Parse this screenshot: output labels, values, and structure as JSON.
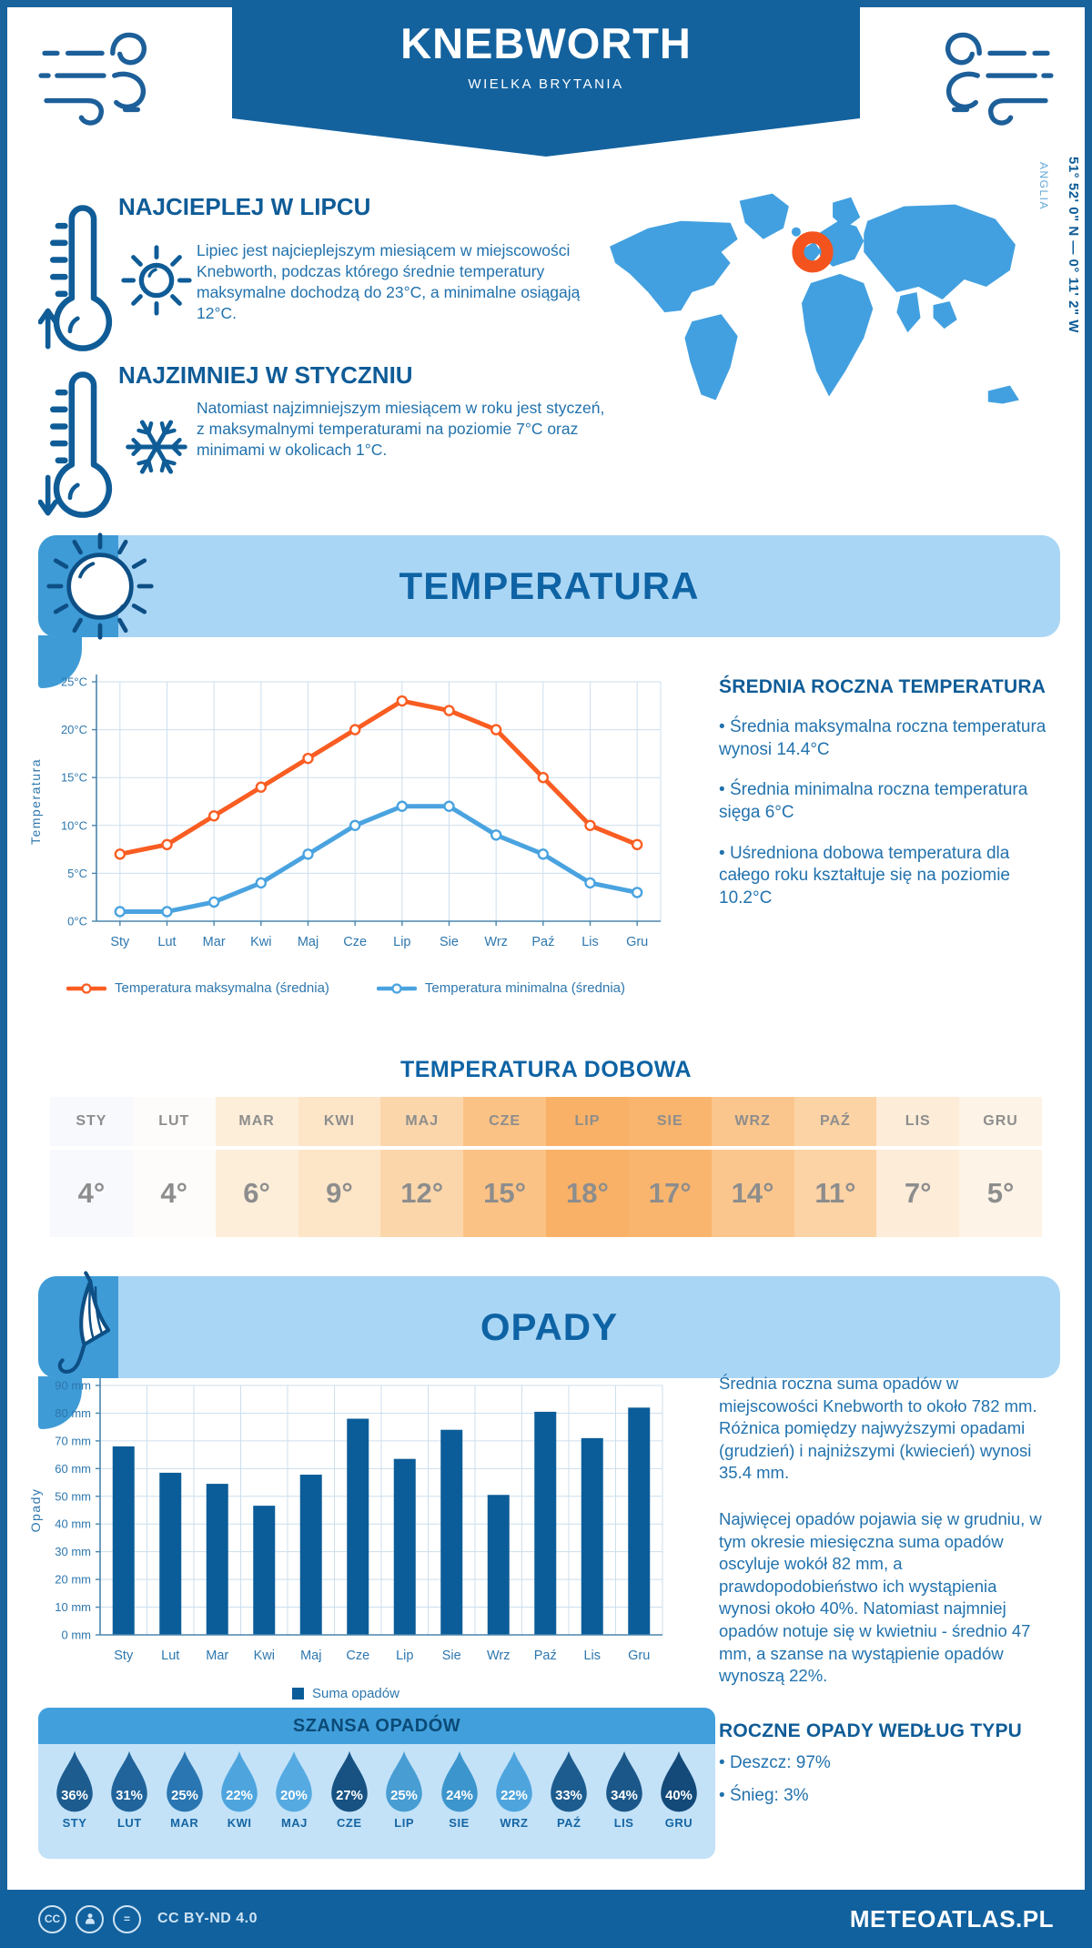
{
  "header": {
    "title": "KNEBWORTH",
    "subtitle": "WIELKA BRYTANIA"
  },
  "highlights": [
    {
      "title": "NAJCIEPLEJ W LIPCU",
      "text": "Lipiec jest najcieplejszym miesiącem w miejscowości Knebworth, podczas którego średnie temperatury maksymalne dochodzą do 23°C, a minimalne osiągają 12°C."
    },
    {
      "title": "NAJZIMNIEJ W STYCZNIU",
      "text": "Natomiast najzimniejszym miesiącem w roku jest styczeń, z maksymalnymi temperaturami na poziomie 7°C oraz minimami w okolicach 1°C."
    }
  ],
  "map": {
    "coordinates": "51° 52' 0\" N — 0° 11' 2\" W",
    "region": "ANGLIA",
    "marker_color": "#f4531d",
    "land_color": "#42a0e0"
  },
  "sections": {
    "temperature": "TEMPERATURA",
    "precipitation": "OPADY"
  },
  "temperature_panel": {
    "heading": "ŚREDNIA ROCZNA TEMPERATURA",
    "bullets": [
      "Średnia maksymalna roczna temperatura wynosi 14.4°C",
      "Średnia minimalna roczna temperatura sięga 6°C",
      "Uśredniona dobowa temperatura dla całego roku kształtuje się na poziomie 10.2°C"
    ]
  },
  "daily_temperature": {
    "heading": "TEMPERATURA DOBOWA",
    "months": [
      "STY",
      "LUT",
      "MAR",
      "KWI",
      "MAJ",
      "CZE",
      "LIP",
      "SIE",
      "WRZ",
      "PAŹ",
      "LIS",
      "GRU"
    ],
    "values": [
      "4°",
      "4°",
      "6°",
      "9°",
      "12°",
      "15°",
      "18°",
      "17°",
      "14°",
      "11°",
      "7°",
      "5°"
    ],
    "cell_colors": [
      "#f8f9fd",
      "#fdfcfa",
      "#fdeeda",
      "#fde5c8",
      "#fcd6ab",
      "#fbc285",
      "#f9b167",
      "#f9b56e",
      "#fbc68d",
      "#fcd3a5",
      "#fdecd8",
      "#fdf4e7"
    ]
  },
  "precipitation_panel": {
    "paragraphs": [
      "Średnia roczna suma opadów w miejscowości Knebworth to około 782 mm. Różnica pomiędzy najwyższymi opadami (grudzień) i najniższymi (kwiecień) wynosi 35.4 mm.",
      "Najwięcej opadów pojawia się w grudniu, w tym okresie miesięczna suma opadów oscyluje wokół 82 mm, a prawdopodobieństwo ich wystąpienia wynosi około 40%. Natomiast najmniej opadów notuje się w kwietniu - średnio 47 mm, a szanse na wystąpienie opadów wynoszą 22%."
    ]
  },
  "rain_chance": {
    "heading": "SZANSA OPADÓW",
    "months": [
      "STY",
      "LUT",
      "MAR",
      "KWI",
      "MAJ",
      "CZE",
      "LIP",
      "SIE",
      "WRZ",
      "PAŹ",
      "LIS",
      "GRU"
    ],
    "values": [
      "36%",
      "31%",
      "25%",
      "22%",
      "20%",
      "27%",
      "25%",
      "24%",
      "22%",
      "33%",
      "34%",
      "40%"
    ],
    "drop_colors": [
      "#1d5c8f",
      "#20649b",
      "#2a76b2",
      "#4ea5de",
      "#56aae2",
      "#175282",
      "#489dd3",
      "#3d95cd",
      "#4ea5de",
      "#1d5c8f",
      "#1b5889",
      "#134a7a"
    ]
  },
  "precipitation_type": {
    "heading": "ROCZNE OPADY WEDŁUG TYPU",
    "bullets": [
      "Deszcz: 97%",
      "Śnieg: 3%"
    ]
  },
  "footer": {
    "license": "CC BY-ND 4.0",
    "brand": "METEOATLAS.PL"
  },
  "colors": {
    "banner_blue": "#13629e",
    "ribbon_light": "#aad6f5",
    "ribbon_tab": "#3e9bd6",
    "max_line": "#f95d22",
    "min_line": "#4aa3e0",
    "bar_blue": "#0b5d99",
    "heading_dark": "#0f5c97",
    "body_blue": "#2272ad"
  },
  "chart_data": [
    {
      "type": "line",
      "x": [
        "Sty",
        "Lut",
        "Mar",
        "Kwi",
        "Maj",
        "Cze",
        "Lip",
        "Sie",
        "Wrz",
        "Paź",
        "Lis",
        "Gru"
      ],
      "ylabel": "Temperatura",
      "ylim": [
        0,
        25
      ],
      "yticks": [
        "0°C",
        "5°C",
        "10°C",
        "15°C",
        "20°C",
        "25°C"
      ],
      "grid": true,
      "legend_position": "bottom",
      "series": [
        {
          "name": "Temperatura maksymalna (średnia)",
          "color": "#f95d22",
          "values": [
            7,
            8,
            11,
            14,
            17,
            20,
            23,
            22,
            20,
            15,
            10,
            8
          ]
        },
        {
          "name": "Temperatura minimalna (średnia)",
          "color": "#4aa3e0",
          "values": [
            1,
            1,
            2,
            4,
            7,
            10,
            12,
            12,
            9,
            7,
            4,
            3
          ]
        }
      ]
    },
    {
      "type": "bar",
      "categories": [
        "Sty",
        "Lut",
        "Mar",
        "Kwi",
        "Maj",
        "Cze",
        "Lip",
        "Sie",
        "Wrz",
        "Paź",
        "Lis",
        "Gru"
      ],
      "values": [
        68,
        58.5,
        54.5,
        46.6,
        57.8,
        78,
        63.5,
        74,
        50.5,
        80.5,
        71,
        82
      ],
      "ylabel": "Opady",
      "ylim": [
        0,
        90
      ],
      "yticks": [
        "0 mm",
        "10 mm",
        "20 mm",
        "30 mm",
        "40 mm",
        "50 mm",
        "60 mm",
        "70 mm",
        "80 mm",
        "90 mm"
      ],
      "grid": true,
      "bar_color": "#0b5d99",
      "legend": "Suma opadów",
      "legend_position": "bottom"
    }
  ]
}
